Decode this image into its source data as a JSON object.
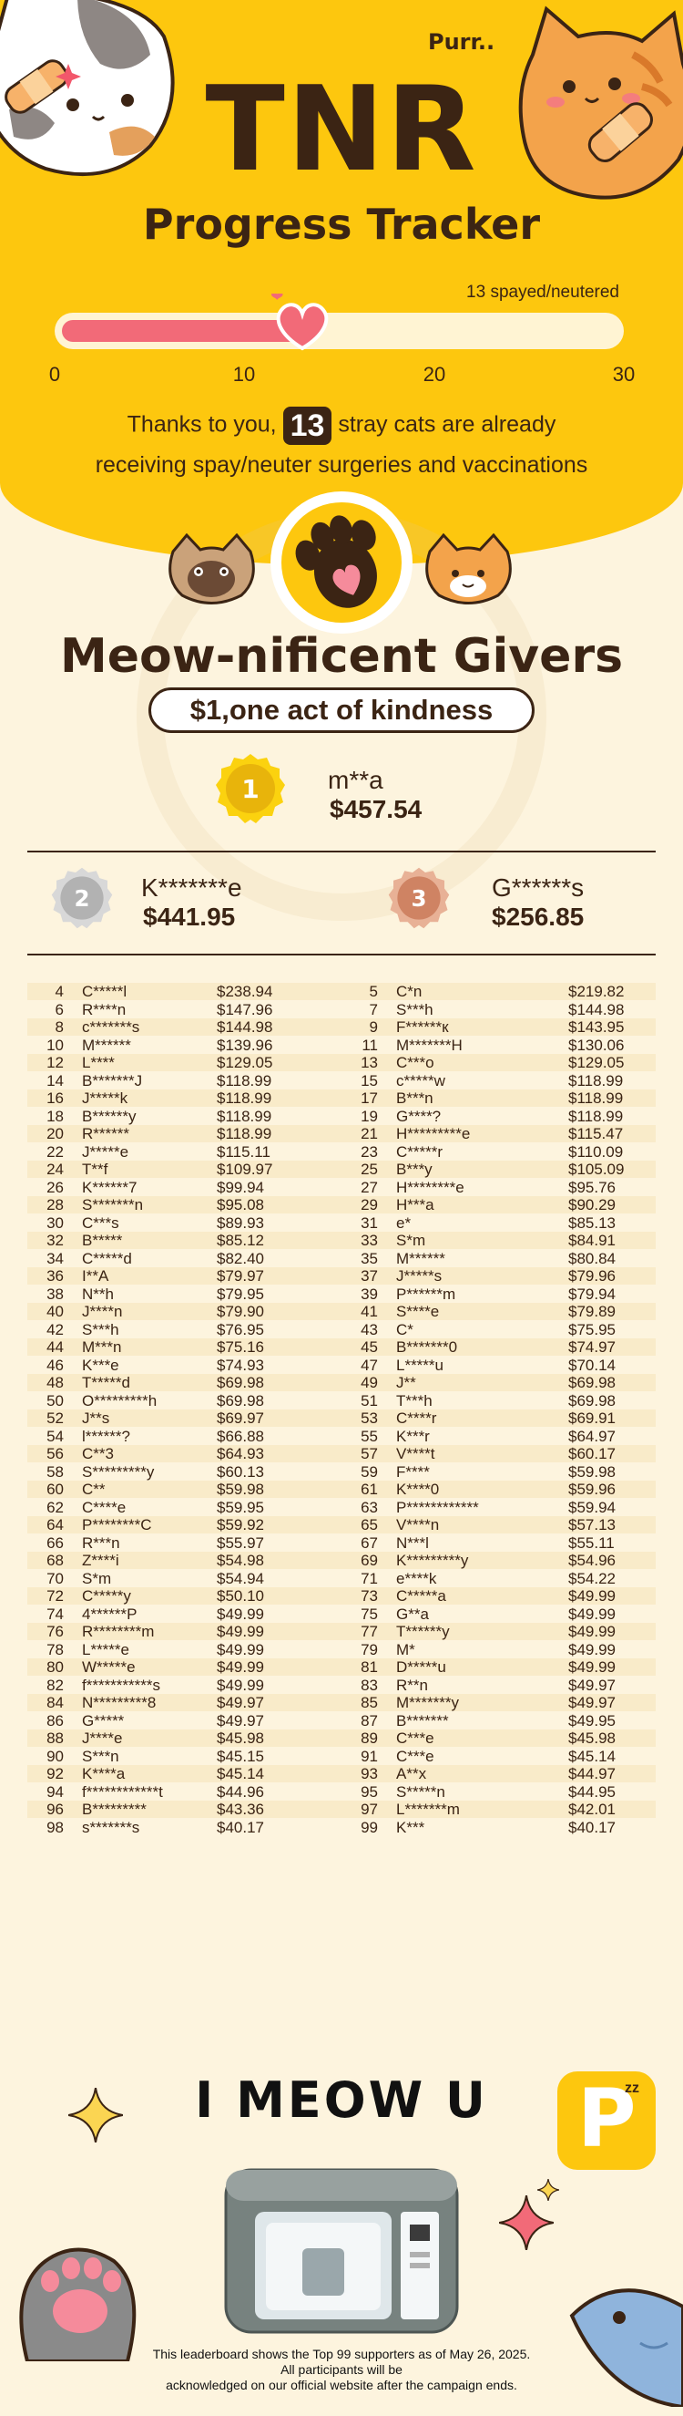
{
  "hero": {
    "purr": "Purr..",
    "title": "TNR",
    "subtitle": "Progress Tracker",
    "progress_label": "13 spayed/neutered",
    "progress_value": 13,
    "progress_max": 30,
    "ticks": [
      "0",
      "10",
      "20",
      "30"
    ],
    "thanks_before": "Thanks to you,",
    "thanks_count": "13",
    "thanks_after": "stray cats are already",
    "thanks_line2": "receiving spay/neuter surgeries and vaccinations"
  },
  "givers": {
    "title": "Meow-nificent Givers",
    "pill": "$1,one act of kindness",
    "gold": {
      "rank": "1",
      "name": "m**a",
      "amount": "$457.54"
    },
    "silver": {
      "rank": "2",
      "name": "K*******e",
      "amount": "$441.95"
    },
    "bronze": {
      "rank": "3",
      "name": "G******s",
      "amount": "$256.85"
    }
  },
  "leaderboard": [
    [
      [
        "4",
        "C*****l",
        "$238.94"
      ],
      [
        "5",
        "C*n",
        "$219.82"
      ]
    ],
    [
      [
        "6",
        "R****n",
        "$147.96"
      ],
      [
        "7",
        "S***h",
        "$144.98"
      ]
    ],
    [
      [
        "8",
        "c*******s",
        "$144.98"
      ],
      [
        "9",
        "F******к",
        "$143.95"
      ]
    ],
    [
      [
        "10",
        "M******",
        "$139.96"
      ],
      [
        "11",
        "M*******H",
        "$130.06"
      ]
    ],
    [
      [
        "12",
        "L****",
        "$129.05"
      ],
      [
        "13",
        "C***o",
        "$129.05"
      ]
    ],
    [
      [
        "14",
        "B*******J",
        "$118.99"
      ],
      [
        "15",
        "c*****w",
        "$118.99"
      ]
    ],
    [
      [
        "16",
        "J*****k",
        "$118.99"
      ],
      [
        "17",
        "B***n",
        "$118.99"
      ]
    ],
    [
      [
        "18",
        "B******y",
        "$118.99"
      ],
      [
        "19",
        "G****?",
        "$118.99"
      ]
    ],
    [
      [
        "20",
        "R******",
        "$118.99"
      ],
      [
        "21",
        "H*********e",
        "$115.47"
      ]
    ],
    [
      [
        "22",
        "J*****e",
        "$115.11"
      ],
      [
        "23",
        "C*****r",
        "$110.09"
      ]
    ],
    [
      [
        "24",
        "T**f",
        "$109.97"
      ],
      [
        "25",
        "B***y",
        "$105.09"
      ]
    ],
    [
      [
        "26",
        "K******7",
        "$99.94"
      ],
      [
        "27",
        "H********e",
        "$95.76"
      ]
    ],
    [
      [
        "28",
        "S*******n",
        "$95.08"
      ],
      [
        "29",
        "H***a",
        "$90.29"
      ]
    ],
    [
      [
        "30",
        "C***s",
        "$89.93"
      ],
      [
        "31",
        "e*",
        "$85.13"
      ]
    ],
    [
      [
        "32",
        "B*****",
        "$85.12"
      ],
      [
        "33",
        "S*m",
        "$84.91"
      ]
    ],
    [
      [
        "34",
        "C*****d",
        "$82.40"
      ],
      [
        "35",
        "M******",
        "$80.84"
      ]
    ],
    [
      [
        "36",
        "I**A",
        "$79.97"
      ],
      [
        "37",
        "J*****s",
        "$79.96"
      ]
    ],
    [
      [
        "38",
        "N**h",
        "$79.95"
      ],
      [
        "39",
        "P******m",
        "$79.94"
      ]
    ],
    [
      [
        "40",
        "J****n",
        "$79.90"
      ],
      [
        "41",
        "S****e",
        "$79.89"
      ]
    ],
    [
      [
        "42",
        "S***h",
        "$76.95"
      ],
      [
        "43",
        "C*",
        "$75.95"
      ]
    ],
    [
      [
        "44",
        "M***n",
        "$75.16"
      ],
      [
        "45",
        "B*******0",
        "$74.97"
      ]
    ],
    [
      [
        "46",
        "K***e",
        "$74.93"
      ],
      [
        "47",
        "L*****u",
        "$70.14"
      ]
    ],
    [
      [
        "48",
        "T*****d",
        "$69.98"
      ],
      [
        "49",
        "J**",
        "$69.98"
      ]
    ],
    [
      [
        "50",
        "O*********h",
        "$69.98"
      ],
      [
        "51",
        "T***h",
        "$69.98"
      ]
    ],
    [
      [
        "52",
        "J**s",
        "$69.97"
      ],
      [
        "53",
        "C****r",
        "$69.91"
      ]
    ],
    [
      [
        "54",
        "l******?",
        "$66.88"
      ],
      [
        "55",
        "K***r",
        "$64.97"
      ]
    ],
    [
      [
        "56",
        "C**3",
        "$64.93"
      ],
      [
        "57",
        "V****t",
        "$60.17"
      ]
    ],
    [
      [
        "58",
        "S*********y",
        "$60.13"
      ],
      [
        "59",
        "F****",
        "$59.98"
      ]
    ],
    [
      [
        "60",
        "C**",
        "$59.98"
      ],
      [
        "61",
        "K****0",
        "$59.96"
      ]
    ],
    [
      [
        "62",
        "C****e",
        "$59.95"
      ],
      [
        "63",
        "P************",
        "$59.94"
      ]
    ],
    [
      [
        "64",
        "P********C",
        "$59.92"
      ],
      [
        "65",
        "V****n",
        "$57.13"
      ]
    ],
    [
      [
        "66",
        "R***n",
        "$55.97"
      ],
      [
        "67",
        "N***l",
        "$55.11"
      ]
    ],
    [
      [
        "68",
        "Z****i",
        "$54.98"
      ],
      [
        "69",
        "K*********y",
        "$54.96"
      ]
    ],
    [
      [
        "70",
        "S*m",
        "$54.94"
      ],
      [
        "71",
        "e****k",
        "$54.22"
      ]
    ],
    [
      [
        "72",
        "C*****y",
        "$50.10"
      ],
      [
        "73",
        "C*****a",
        "$49.99"
      ]
    ],
    [
      [
        "74",
        "4******P",
        "$49.99"
      ],
      [
        "75",
        "G**a",
        "$49.99"
      ]
    ],
    [
      [
        "76",
        "R********m",
        "$49.99"
      ],
      [
        "77",
        "T******y",
        "$49.99"
      ]
    ],
    [
      [
        "78",
        "L*****e",
        "$49.99"
      ],
      [
        "79",
        "M*",
        "$49.99"
      ]
    ],
    [
      [
        "80",
        "W*****e",
        "$49.99"
      ],
      [
        "81",
        "D*****u",
        "$49.99"
      ]
    ],
    [
      [
        "82",
        "f***********s",
        "$49.99"
      ],
      [
        "83",
        "R**n",
        "$49.97"
      ]
    ],
    [
      [
        "84",
        "N*********8",
        "$49.97"
      ],
      [
        "85",
        "M*******y",
        "$49.97"
      ]
    ],
    [
      [
        "86",
        "G*****",
        "$49.97"
      ],
      [
        "87",
        "B*******",
        "$49.95"
      ]
    ],
    [
      [
        "88",
        "J****e",
        "$45.98"
      ],
      [
        "89",
        "C***e",
        "$45.98"
      ]
    ],
    [
      [
        "90",
        "S***n",
        "$45.15"
      ],
      [
        "91",
        "C***e",
        "$45.14"
      ]
    ],
    [
      [
        "92",
        "K****a",
        "$45.14"
      ],
      [
        "93",
        "A**x",
        "$44.97"
      ]
    ],
    [
      [
        "94",
        "f************t",
        "$44.96"
      ],
      [
        "95",
        "S*****n",
        "$44.95"
      ]
    ],
    [
      [
        "96",
        "B*********",
        "$43.36"
      ],
      [
        "97",
        "L*******m",
        "$42.01"
      ]
    ],
    [
      [
        "98",
        "s*******s",
        "$40.17"
      ],
      [
        "99",
        "K***",
        "$40.17"
      ]
    ]
  ],
  "footer": {
    "slogan": "I MEOW U",
    "logo_letter": "P",
    "logo_zz": "zz",
    "line1": "This leaderboard shows the Top 99 supporters as of May 26, 2025.",
    "line2": "All participants will be",
    "line3": "acknowledged on our official website after the campaign ends."
  }
}
